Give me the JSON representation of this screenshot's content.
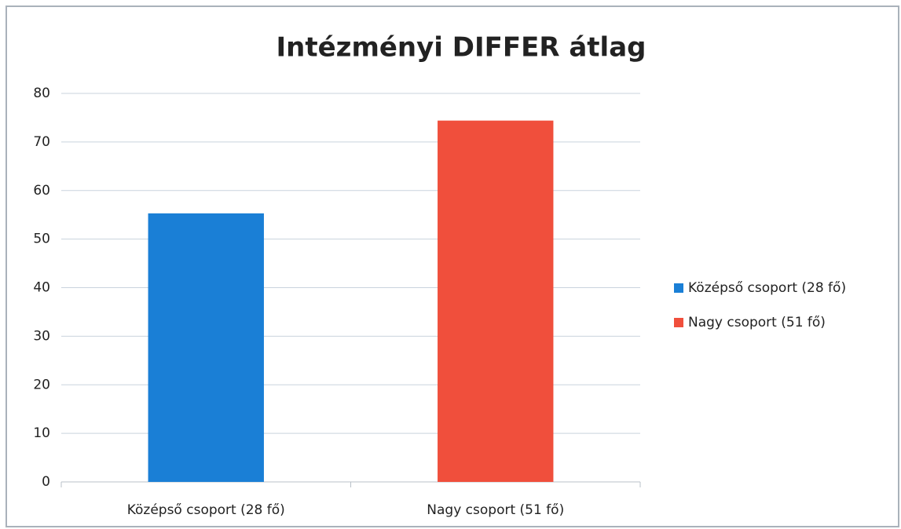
{
  "chart_data": {
    "type": "bar",
    "title": "Intézményi DIFFER átlag",
    "categories": [
      "Középső csoport (28 fő)",
      "Nagy csoport (51 fő)"
    ],
    "series": [
      {
        "name": "Középső csoport (28 fő)",
        "color": "#1a7fd6",
        "values": [
          55.3,
          null
        ]
      },
      {
        "name": "Nagy csoport (51 fő)",
        "color": "#f04f3c",
        "values": [
          null,
          74.4
        ]
      }
    ],
    "ylim": [
      0,
      80
    ],
    "yticks": [
      0,
      10,
      20,
      30,
      40,
      50,
      60,
      70,
      80
    ],
    "grid": true,
    "legend": "right"
  }
}
